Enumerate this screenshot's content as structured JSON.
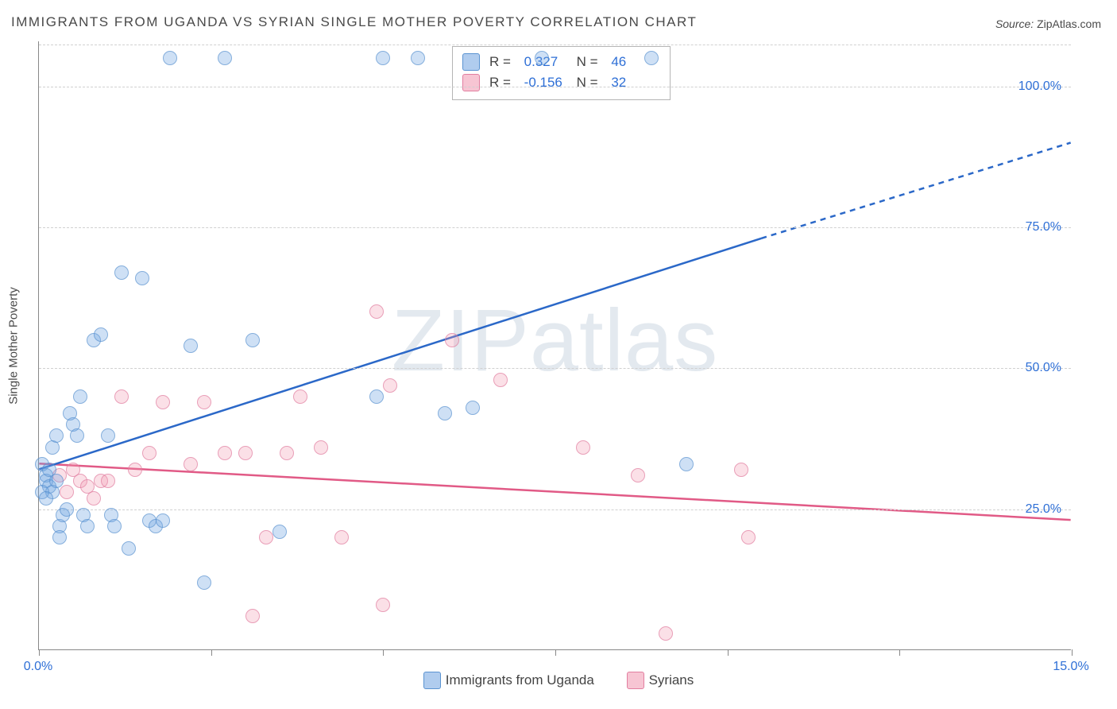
{
  "title": "IMMIGRANTS FROM UGANDA VS SYRIAN SINGLE MOTHER POVERTY CORRELATION CHART",
  "source": {
    "label": "Source:",
    "value": "ZipAtlas.com"
  },
  "watermark": {
    "prefix": "ZIP",
    "suffix": "atlas"
  },
  "chart": {
    "type": "scatter",
    "background_color": "#ffffff",
    "grid_color": "#d0d0d0",
    "axis_color": "#888888",
    "yaxis_title": "Single Mother Poverty",
    "xlim": [
      0,
      15
    ],
    "ylim": [
      0,
      108
    ],
    "xtick_positions": [
      0,
      2.5,
      5,
      7.5,
      10,
      12.5,
      15
    ],
    "xtick_labels": {
      "0": "0.0%",
      "15": "15.0%"
    },
    "ytick_positions": [
      25,
      50,
      75,
      100
    ],
    "ytick_labels": [
      "25.0%",
      "50.0%",
      "75.0%",
      "100.0%"
    ],
    "marker_radius": 9,
    "series": {
      "a": {
        "name": "Immigrants from Uganda",
        "color_fill": "rgba(111,163,224,0.45)",
        "color_border": "#5b93d1",
        "trend": {
          "color": "#2b68c8",
          "width": 2.5,
          "x1": 0,
          "y1": 32,
          "x2_solid": 10.5,
          "y2_solid": 73,
          "x2": 15,
          "y2": 90
        },
        "stats": {
          "R": "0.327",
          "N": "46"
        },
        "points": [
          [
            0.05,
            33
          ],
          [
            0.1,
            31
          ],
          [
            0.1,
            30
          ],
          [
            0.15,
            32
          ],
          [
            0.15,
            29
          ],
          [
            0.2,
            28
          ],
          [
            0.2,
            36
          ],
          [
            0.25,
            38
          ],
          [
            0.25,
            30
          ],
          [
            0.3,
            22
          ],
          [
            0.35,
            24
          ],
          [
            0.4,
            25
          ],
          [
            0.45,
            42
          ],
          [
            0.5,
            40
          ],
          [
            0.55,
            38
          ],
          [
            0.6,
            45
          ],
          [
            0.65,
            24
          ],
          [
            0.7,
            22
          ],
          [
            0.8,
            55
          ],
          [
            0.9,
            56
          ],
          [
            1.0,
            38
          ],
          [
            1.05,
            24
          ],
          [
            1.1,
            22
          ],
          [
            1.2,
            67
          ],
          [
            1.3,
            18
          ],
          [
            1.5,
            66
          ],
          [
            1.6,
            23
          ],
          [
            1.7,
            22
          ],
          [
            1.8,
            23
          ],
          [
            1.9,
            105
          ],
          [
            2.2,
            54
          ],
          [
            2.4,
            12
          ],
          [
            2.7,
            105
          ],
          [
            3.1,
            55
          ],
          [
            3.5,
            21
          ],
          [
            4.9,
            45
          ],
          [
            5.0,
            105
          ],
          [
            5.5,
            105
          ],
          [
            5.9,
            42
          ],
          [
            6.3,
            43
          ],
          [
            7.3,
            105
          ],
          [
            8.9,
            105
          ],
          [
            9.4,
            33
          ],
          [
            0.05,
            28
          ],
          [
            0.1,
            27
          ],
          [
            0.3,
            20
          ]
        ]
      },
      "b": {
        "name": "Syrians",
        "color_fill": "rgba(240,150,175,0.4)",
        "color_border": "#e27ea0",
        "trend": {
          "color": "#e15a86",
          "width": 2.5,
          "x1": 0,
          "y1": 33,
          "x2": 15,
          "y2": 23
        },
        "stats": {
          "R": "-0.156",
          "N": "32"
        },
        "points": [
          [
            0.3,
            31
          ],
          [
            0.4,
            28
          ],
          [
            0.5,
            32
          ],
          [
            0.6,
            30
          ],
          [
            0.7,
            29
          ],
          [
            0.8,
            27
          ],
          [
            0.9,
            30
          ],
          [
            1.0,
            30
          ],
          [
            1.2,
            45
          ],
          [
            1.4,
            32
          ],
          [
            1.6,
            35
          ],
          [
            1.8,
            44
          ],
          [
            2.2,
            33
          ],
          [
            2.4,
            44
          ],
          [
            2.7,
            35
          ],
          [
            3.0,
            35
          ],
          [
            3.1,
            6
          ],
          [
            3.3,
            20
          ],
          [
            3.6,
            35
          ],
          [
            3.8,
            45
          ],
          [
            4.1,
            36
          ],
          [
            4.4,
            20
          ],
          [
            4.9,
            60
          ],
          [
            5.0,
            8
          ],
          [
            5.1,
            47
          ],
          [
            6.0,
            55
          ],
          [
            6.7,
            48
          ],
          [
            7.9,
            36
          ],
          [
            8.7,
            31
          ],
          [
            9.1,
            3
          ],
          [
            10.2,
            32
          ],
          [
            10.3,
            20
          ]
        ]
      }
    },
    "legend_box": {
      "R_label": "R =",
      "N_label": "N ="
    }
  }
}
